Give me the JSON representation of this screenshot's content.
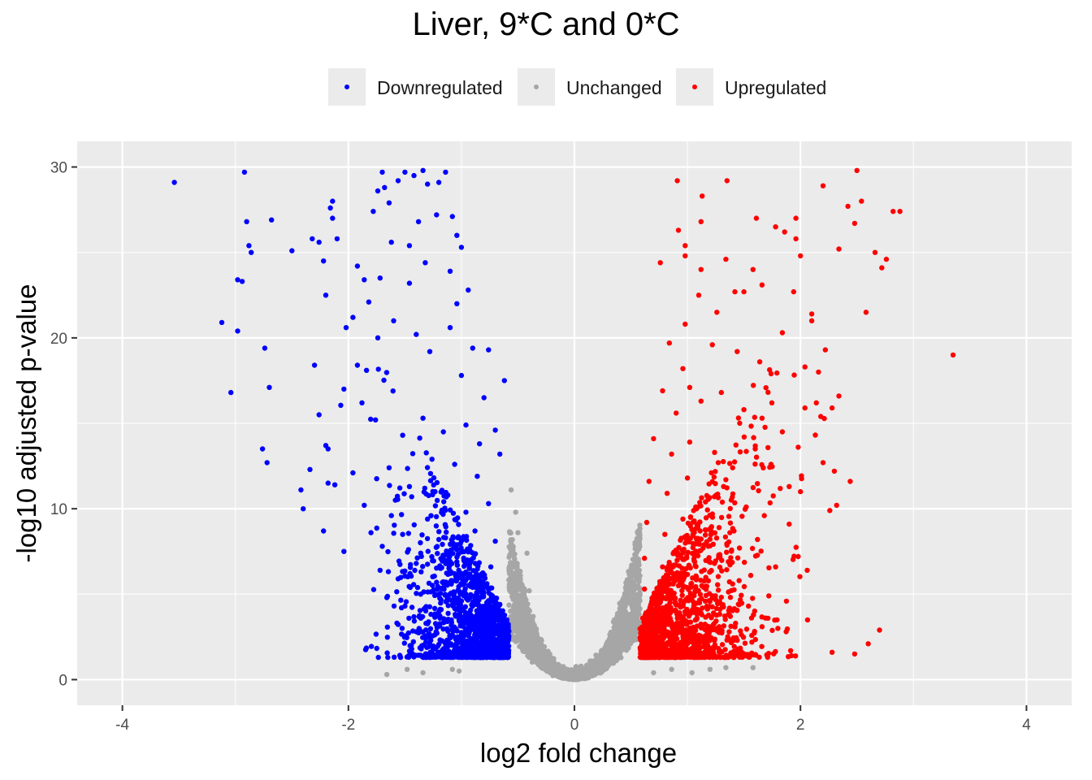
{
  "chart_data": {
    "type": "scatter",
    "title": "Liver, 9*C and 0*C",
    "xlabel": "log2 fold change",
    "ylabel": "-log10 adjusted p-value",
    "xlim": [
      -4.4,
      4.4
    ],
    "ylim": [
      -1.5,
      31.5
    ],
    "x_ticks": [
      -4,
      -2,
      0,
      2,
      4
    ],
    "x_tick_labels": [
      "-4",
      "-2",
      "0",
      "2",
      "4"
    ],
    "y_ticks": [
      0,
      10,
      20,
      30
    ],
    "y_tick_labels": [
      "0",
      "10",
      "20",
      "30"
    ],
    "grid": true,
    "legend_position": "top",
    "fc_threshold": 0.58,
    "series": [
      {
        "name": "Downregulated",
        "color": "#0000ff",
        "role": "down",
        "values": [
          [
            -3.54,
            29.1
          ],
          [
            -2.92,
            29.7
          ],
          [
            -2.9,
            26.8
          ],
          [
            -2.88,
            25.4
          ],
          [
            -2.86,
            25.0
          ],
          [
            -2.98,
            23.4
          ],
          [
            -2.94,
            23.3
          ],
          [
            -2.68,
            26.9
          ],
          [
            -3.12,
            20.9
          ],
          [
            -2.98,
            20.4
          ],
          [
            -2.74,
            19.4
          ],
          [
            -3.04,
            16.8
          ],
          [
            -2.7,
            17.1
          ],
          [
            -2.76,
            13.5
          ],
          [
            -2.72,
            12.7
          ],
          [
            -2.5,
            25.1
          ],
          [
            -2.32,
            25.8
          ],
          [
            -2.22,
            24.5
          ],
          [
            -2.26,
            25.6
          ],
          [
            -2.16,
            27.6
          ],
          [
            -2.14,
            28.0
          ],
          [
            -2.14,
            27.0
          ],
          [
            -2.1,
            25.8
          ],
          [
            -2.2,
            22.5
          ],
          [
            -2.3,
            18.4
          ],
          [
            -2.26,
            15.5
          ],
          [
            -2.2,
            13.7
          ],
          [
            -2.18,
            13.5
          ],
          [
            -2.34,
            12.3
          ],
          [
            -2.4,
            10.0
          ],
          [
            -2.42,
            11.1
          ],
          [
            -2.22,
            8.7
          ],
          [
            -2.18,
            11.5
          ],
          [
            -2.12,
            11.4
          ],
          [
            -2.04,
            7.5
          ],
          [
            -2.04,
            17.0
          ],
          [
            -2.02,
            20.6
          ],
          [
            -1.96,
            21.2
          ],
          [
            -1.86,
            23.4
          ],
          [
            -1.92,
            24.2
          ],
          [
            -1.82,
            22.1
          ],
          [
            -1.78,
            27.4
          ],
          [
            -1.74,
            28.6
          ],
          [
            -1.7,
            29.7
          ],
          [
            -1.68,
            28.8
          ],
          [
            -1.64,
            27.9
          ],
          [
            -1.56,
            29.2
          ],
          [
            -1.5,
            29.7
          ],
          [
            -1.42,
            29.5
          ],
          [
            -1.34,
            29.8
          ],
          [
            -1.3,
            29.0
          ],
          [
            -1.2,
            29.1
          ],
          [
            -1.14,
            29.7
          ],
          [
            -1.22,
            27.2
          ],
          [
            -1.08,
            27.1
          ],
          [
            -1.04,
            26.0
          ],
          [
            -1.0,
            25.3
          ],
          [
            -1.38,
            26.8
          ],
          [
            -1.46,
            25.4
          ],
          [
            -1.62,
            25.6
          ],
          [
            -1.72,
            23.5
          ],
          [
            -1.46,
            23.2
          ],
          [
            -1.32,
            24.4
          ],
          [
            -1.1,
            23.9
          ],
          [
            -1.04,
            22.0
          ],
          [
            -0.94,
            22.8
          ],
          [
            -0.9,
            19.4
          ],
          [
            -0.76,
            19.3
          ],
          [
            -0.62,
            17.5
          ],
          [
            -0.8,
            16.5
          ],
          [
            -1.84,
            18.1
          ],
          [
            -1.92,
            18.4
          ],
          [
            -1.74,
            20.0
          ],
          [
            -1.6,
            21.0
          ],
          [
            -1.4,
            20.2
          ],
          [
            -1.28,
            19.2
          ],
          [
            -1.1,
            20.6
          ],
          [
            -1.0,
            17.8
          ],
          [
            -0.66,
            13.2
          ],
          [
            -0.7,
            14.6
          ],
          [
            -1.88,
            16.2
          ],
          [
            -1.76,
            15.2
          ],
          [
            -1.52,
            14.3
          ],
          [
            -1.34,
            15.3
          ],
          [
            -1.16,
            14.5
          ],
          [
            -0.96,
            14.9
          ],
          [
            -0.84,
            13.8
          ],
          [
            -1.96,
            12.1
          ],
          [
            -1.64,
            12.4
          ],
          [
            -1.46,
            11.3
          ],
          [
            -1.26,
            12.9
          ],
          [
            -1.06,
            12.6
          ],
          [
            -0.86,
            11.9
          ],
          [
            -1.86,
            10.2
          ],
          [
            -1.62,
            9.6
          ],
          [
            -1.44,
            10.7
          ],
          [
            -1.3,
            9.4
          ],
          [
            -1.12,
            10.8
          ],
          [
            -0.96,
            9.8
          ],
          [
            -0.76,
            10.3
          ],
          [
            -1.8,
            8.6
          ],
          [
            -1.7,
            7.8
          ],
          [
            -1.52,
            8.5
          ],
          [
            -1.36,
            7.4
          ],
          [
            -1.2,
            8.2
          ],
          [
            -1.04,
            7.6
          ],
          [
            -0.88,
            8.7
          ],
          [
            -0.7,
            8.1
          ],
          [
            -1.72,
            6.4
          ],
          [
            -1.56,
            5.9
          ],
          [
            -1.4,
            6.8
          ],
          [
            -1.22,
            5.7
          ],
          [
            -1.06,
            6.2
          ],
          [
            -0.9,
            5.4
          ],
          [
            -0.74,
            6.6
          ],
          [
            -1.66,
            4.8
          ],
          [
            -1.5,
            4.3
          ],
          [
            -1.36,
            5.0
          ],
          [
            -1.18,
            4.1
          ],
          [
            -1.0,
            4.6
          ],
          [
            -0.84,
            3.8
          ],
          [
            -0.66,
            4.4
          ],
          [
            -1.22,
            3.2
          ],
          [
            -1.08,
            2.6
          ],
          [
            -0.94,
            3.0
          ],
          [
            -0.8,
            2.2
          ],
          [
            -0.64,
            2.8
          ],
          [
            -0.9,
            1.8
          ],
          [
            -0.72,
            1.5
          ],
          [
            -0.6,
            1.9
          ]
        ]
      },
      {
        "name": "Unchanged",
        "color": "#a6a6a6",
        "role": "unchanged",
        "values": [
          [
            -1.66,
            0.3
          ],
          [
            -1.48,
            0.6
          ],
          [
            -1.34,
            0.4
          ],
          [
            -1.08,
            0.6
          ],
          [
            -1.02,
            0.5
          ],
          [
            -0.56,
            11.1
          ],
          [
            -0.52,
            9.8
          ],
          [
            -0.5,
            8.6
          ],
          [
            -0.42,
            7.4
          ],
          [
            -0.4,
            5.2
          ],
          [
            -0.56,
            6.3
          ],
          [
            -0.5,
            4.7
          ],
          [
            -0.38,
            3.1
          ],
          [
            -0.3,
            1.6
          ],
          [
            -0.2,
            0.9
          ],
          [
            -0.12,
            0.5
          ],
          [
            -0.06,
            0.2
          ],
          [
            0.0,
            0.0
          ],
          [
            0.06,
            0.3
          ],
          [
            0.14,
            0.9
          ],
          [
            0.24,
            1.7
          ],
          [
            0.32,
            2.5
          ],
          [
            0.4,
            3.8
          ],
          [
            0.46,
            5.5
          ],
          [
            0.52,
            6.6
          ],
          [
            0.56,
            8.2
          ],
          [
            0.54,
            4.4
          ],
          [
            0.48,
            2.9
          ],
          [
            0.7,
            0.4
          ],
          [
            0.86,
            0.6
          ],
          [
            1.04,
            0.4
          ],
          [
            1.2,
            0.6
          ],
          [
            1.34,
            0.7
          ],
          [
            1.58,
            0.7
          ]
        ]
      },
      {
        "name": "Upregulated",
        "color": "#ff0000",
        "role": "up",
        "values": [
          [
            0.91,
            29.2
          ],
          [
            1.35,
            29.2
          ],
          [
            1.13,
            28.3
          ],
          [
            2.5,
            29.8
          ],
          [
            2.2,
            28.9
          ],
          [
            2.54,
            28.0
          ],
          [
            2.42,
            27.7
          ],
          [
            2.82,
            27.4
          ],
          [
            2.88,
            27.4
          ],
          [
            2.48,
            26.7
          ],
          [
            1.61,
            27.0
          ],
          [
            1.78,
            26.5
          ],
          [
            1.86,
            26.2
          ],
          [
            1.96,
            27.0
          ],
          [
            1.96,
            25.8
          ],
          [
            2.34,
            25.2
          ],
          [
            2.66,
            25.0
          ],
          [
            2.76,
            24.6
          ],
          [
            2.72,
            24.1
          ],
          [
            2.0,
            24.8
          ],
          [
            2.58,
            21.5
          ],
          [
            2.1,
            21.4
          ],
          [
            1.84,
            20.3
          ],
          [
            2.1,
            21.0
          ],
          [
            3.35,
            19.0
          ],
          [
            2.22,
            19.3
          ],
          [
            1.94,
            22.7
          ],
          [
            2.34,
            16.6
          ],
          [
            2.14,
            16.2
          ],
          [
            2.04,
            15.9
          ],
          [
            2.28,
            15.9
          ],
          [
            2.18,
            15.4
          ],
          [
            2.16,
            18.0
          ],
          [
            2.04,
            18.3
          ],
          [
            0.76,
            24.4
          ],
          [
            0.92,
            26.3
          ],
          [
            0.98,
            25.4
          ],
          [
            1.12,
            26.8
          ],
          [
            0.98,
            24.8
          ],
          [
            1.34,
            24.6
          ],
          [
            1.12,
            24.0
          ],
          [
            1.42,
            22.7
          ],
          [
            1.58,
            24.0
          ],
          [
            1.66,
            23.1
          ],
          [
            1.5,
            22.7
          ],
          [
            1.26,
            21.5
          ],
          [
            1.1,
            22.5
          ],
          [
            0.98,
            20.8
          ],
          [
            0.84,
            19.7
          ],
          [
            0.96,
            18.2
          ],
          [
            1.02,
            17.1
          ],
          [
            1.22,
            19.6
          ],
          [
            1.44,
            19.2
          ],
          [
            1.64,
            18.6
          ],
          [
            1.74,
            17.9
          ],
          [
            0.78,
            16.9
          ],
          [
            0.9,
            15.6
          ],
          [
            1.12,
            16.3
          ],
          [
            1.3,
            16.8
          ],
          [
            1.5,
            15.8
          ],
          [
            1.66,
            15.3
          ],
          [
            1.84,
            14.5
          ],
          [
            1.98,
            13.6
          ],
          [
            2.3,
            12.2
          ],
          [
            2.44,
            11.6
          ],
          [
            2.2,
            12.7
          ],
          [
            2.0,
            11.0
          ],
          [
            2.32,
            10.2
          ],
          [
            2.26,
            9.9
          ],
          [
            0.7,
            14.1
          ],
          [
            0.86,
            13.2
          ],
          [
            1.02,
            13.9
          ],
          [
            1.24,
            13.3
          ],
          [
            1.4,
            12.4
          ],
          [
            1.6,
            13.5
          ],
          [
            1.74,
            12.6
          ],
          [
            1.9,
            11.3
          ],
          [
            0.66,
            11.6
          ],
          [
            0.82,
            10.9
          ],
          [
            1.0,
            11.8
          ],
          [
            1.16,
            10.4
          ],
          [
            1.32,
            11.3
          ],
          [
            1.52,
            10.1
          ],
          [
            1.68,
            9.6
          ],
          [
            1.9,
            9.1
          ],
          [
            1.98,
            7.2
          ],
          [
            2.06,
            6.4
          ],
          [
            0.64,
            9.2
          ],
          [
            0.8,
            8.5
          ],
          [
            0.96,
            9.4
          ],
          [
            1.1,
            8.1
          ],
          [
            1.28,
            8.9
          ],
          [
            1.46,
            7.7
          ],
          [
            1.62,
            8.2
          ],
          [
            1.78,
            6.6
          ],
          [
            0.62,
            7.1
          ],
          [
            0.78,
            6.6
          ],
          [
            0.94,
            7.3
          ],
          [
            1.08,
            6.0
          ],
          [
            1.24,
            6.8
          ],
          [
            1.4,
            5.6
          ],
          [
            1.56,
            6.1
          ],
          [
            1.72,
            4.9
          ],
          [
            0.62,
            5.3
          ],
          [
            0.76,
            4.6
          ],
          [
            0.92,
            5.5
          ],
          [
            1.06,
            4.2
          ],
          [
            1.22,
            4.9
          ],
          [
            1.38,
            3.7
          ],
          [
            1.54,
            4.3
          ],
          [
            1.66,
            3.1
          ],
          [
            0.62,
            3.4
          ],
          [
            0.78,
            2.8
          ],
          [
            0.94,
            3.6
          ],
          [
            1.1,
            2.6
          ],
          [
            1.26,
            3.0
          ],
          [
            1.44,
            2.3
          ],
          [
            0.64,
            2.0
          ],
          [
            0.82,
            1.6
          ],
          [
            1.0,
            2.1
          ],
          [
            1.18,
            1.5
          ],
          [
            1.35,
            1.4
          ],
          [
            1.8,
            3.0
          ],
          [
            1.92,
            1.4
          ],
          [
            2.28,
            1.6
          ],
          [
            2.48,
            1.5
          ],
          [
            2.6,
            2.1
          ],
          [
            2.7,
            2.9
          ]
        ]
      }
    ]
  }
}
